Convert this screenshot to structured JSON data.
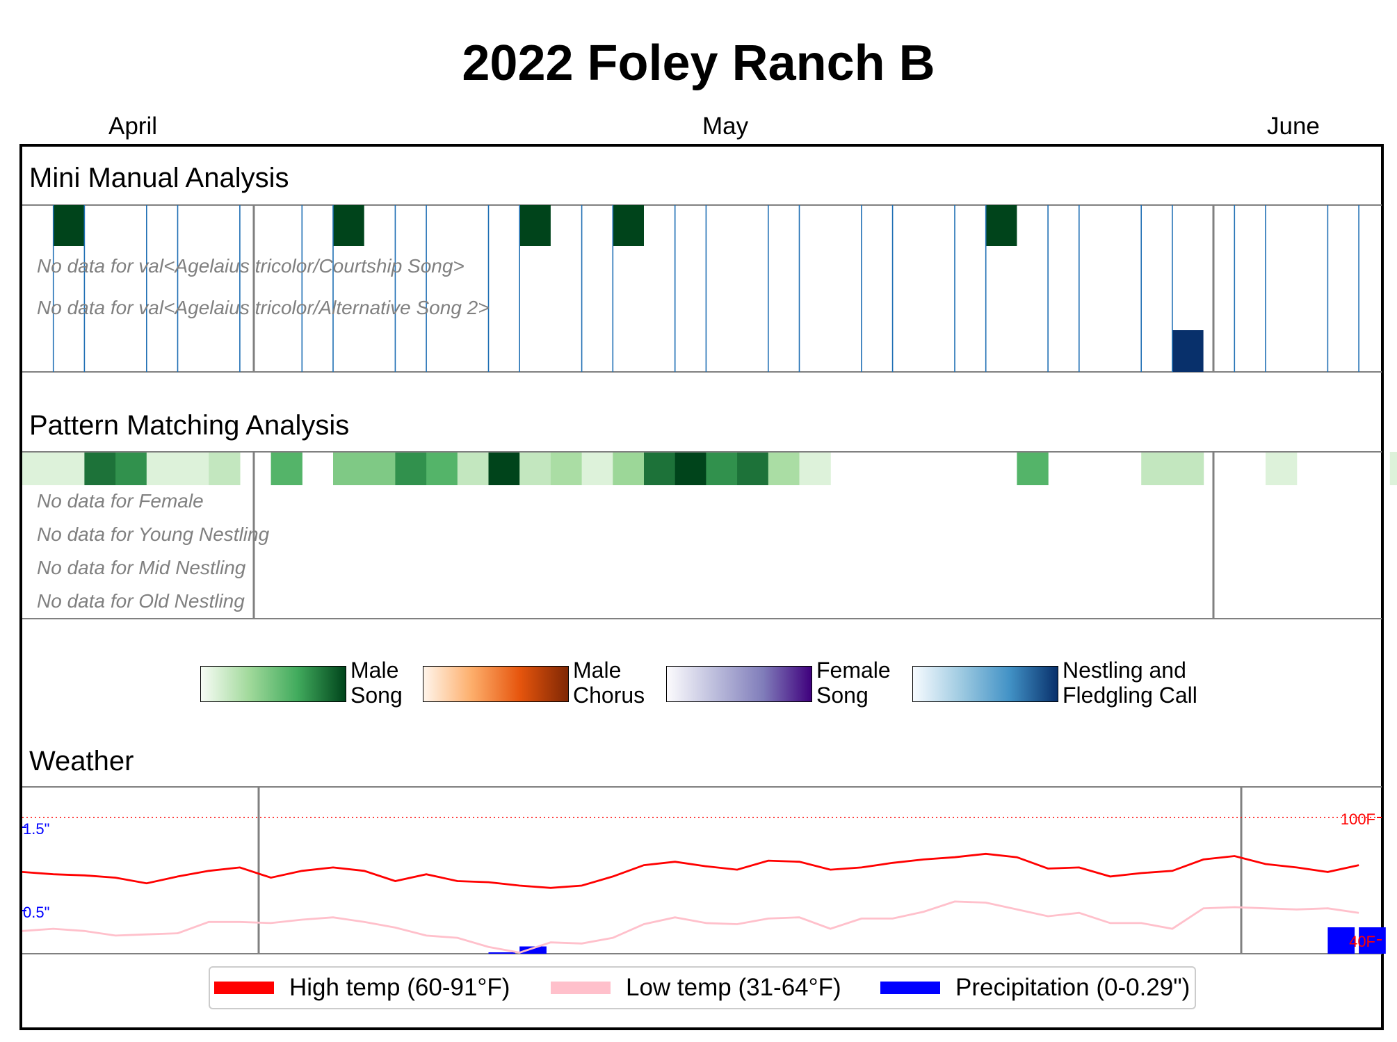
{
  "title": "2022 Foley Ranch B",
  "months": [
    {
      "label": "April"
    },
    {
      "label": "May"
    },
    {
      "label": "June"
    }
  ],
  "sections": {
    "manual": "Mini Manual Analysis",
    "pattern": "Pattern Matching Analysis",
    "weather": "Weather"
  },
  "nodata": {
    "manual": [
      "No data for val<Agelaius tricolor/Courtship Song>",
      "No data for val<Agelaius tricolor/Alternative Song 2>"
    ],
    "pattern": [
      "No data for Female",
      "No data for Young Nestling",
      "No data for Mid Nestling",
      "No data for Old Nestling"
    ]
  },
  "colorbars": [
    {
      "label": "Male\nSong",
      "colors": [
        "#f7fcf5",
        "#a1d99b",
        "#41ab5d",
        "#00441b"
      ]
    },
    {
      "label": "Male\nChorus",
      "colors": [
        "#fff5eb",
        "#fdae6b",
        "#e6550d",
        "#7f2704"
      ]
    },
    {
      "label": "Female\nSong",
      "colors": [
        "#fcfbfd",
        "#bcbddc",
        "#807dba",
        "#3f007d"
      ]
    },
    {
      "label": "Nestling and\nFledgling Call",
      "colors": [
        "#f7fbff",
        "#9ecae1",
        "#4292c6",
        "#08306b"
      ]
    }
  ],
  "chart_data": [
    {
      "type": "heatmap",
      "title": "Mini Manual Analysis",
      "rows": [
        "Male Song",
        "val<Agelaius tricolor/Courtship Song>",
        "val<Agelaius tricolor/Alternative Song 2>",
        "Nestling and Fledgling Call"
      ],
      "sampled_days": [
        2,
        3,
        5,
        6,
        8,
        10,
        11,
        13,
        14,
        16,
        17,
        19,
        20,
        22,
        23,
        25,
        26,
        28,
        29,
        31,
        32,
        34,
        35,
        37,
        38,
        40,
        41,
        43,
        44
      ],
      "male_song_days": [
        2,
        11,
        17,
        20,
        32
      ],
      "male_song_intensity": 1.0,
      "nestling_call_days": [
        38
      ],
      "nestling_call_intensity": 1.0,
      "month_boundaries": [
        "2022-05-01",
        "2022-06-01"
      ]
    },
    {
      "type": "heatmap",
      "title": "Pattern Matching Analysis",
      "rows": [
        "Male Song",
        "Female",
        "Young Nestling",
        "Mid Nestling",
        "Old Nestling"
      ],
      "day_start": 1,
      "male_song": [
        0.1,
        0.1,
        0.85,
        0.75,
        0.1,
        0.1,
        0.2,
        null,
        0.6,
        null,
        0.45,
        0.45,
        0.75,
        0.6,
        0.2,
        1.0,
        0.2,
        0.3,
        0.1,
        0.35,
        0.85,
        1.0,
        0.75,
        0.85,
        0.3,
        0.1,
        null,
        null,
        null,
        null,
        null,
        null,
        0.6,
        null,
        null,
        null,
        0.2,
        0.2,
        null,
        null,
        0.1,
        null,
        null,
        null,
        0.1
      ]
    },
    {
      "type": "line",
      "title": "Weather",
      "x_unit": "day",
      "x_start": 1,
      "series": [
        {
          "name": "High temp (60-91°F)",
          "color": "#ff0000",
          "values": [
            76,
            75,
            74.5,
            73.5,
            71,
            74,
            76.5,
            78,
            73.5,
            76.5,
            78,
            76.5,
            72,
            75,
            72,
            71.5,
            70,
            69,
            70,
            74,
            79,
            80.5,
            78.5,
            77,
            81,
            80.5,
            77,
            78,
            80,
            81.5,
            82.5,
            84,
            82.5,
            77.5,
            78,
            74,
            75.5,
            76.5,
            81.5,
            83,
            79.5,
            78,
            76,
            79
          ]
        },
        {
          "name": "Low temp (31-64°F)",
          "color": "#ffc0cb",
          "values": [
            50,
            51,
            50,
            48,
            48.5,
            49,
            54,
            54,
            53.5,
            55,
            56,
            54,
            51.5,
            48,
            47,
            43,
            40.5,
            45,
            44.5,
            47,
            53,
            56,
            53.5,
            53,
            55.5,
            56,
            51,
            55.5,
            55.5,
            58.5,
            63,
            62.5,
            59.5,
            56.5,
            58,
            53.5,
            53.5,
            51,
            60,
            60.5,
            60,
            59.5,
            60,
            58
          ]
        },
        {
          "name": "Precipitation (0-0.29\")",
          "color": "#0000ff",
          "kind": "bar",
          "values": {
            "16": 0.01,
            "17": 0.08,
            "43": 0.29,
            "44": 0.29
          }
        }
      ],
      "y_ticks_left": [
        "1.5\"",
        "0.5\""
      ],
      "y_ticks_right": [
        "100F",
        "40F"
      ],
      "reference_line": "100F"
    }
  ],
  "legend": [
    {
      "label": "High temp (60-91°F)",
      "color": "#ff0000"
    },
    {
      "label": "Low temp (31-64°F)",
      "color": "#ffc0cb"
    },
    {
      "label": "Precipitation (0-0.29\")",
      "color": "#0000ff"
    }
  ]
}
